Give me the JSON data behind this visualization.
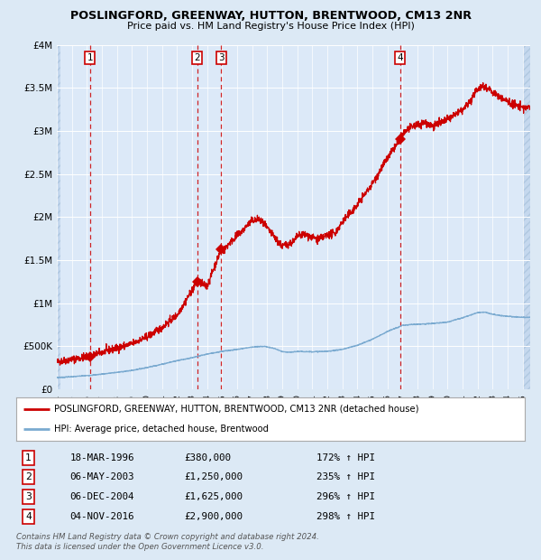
{
  "title": "POSLINGFORD, GREENWAY, HUTTON, BRENTWOOD, CM13 2NR",
  "subtitle": "Price paid vs. HM Land Registry's House Price Index (HPI)",
  "ylim": [
    0,
    4000000
  ],
  "yticks": [
    0,
    500000,
    1000000,
    1500000,
    2000000,
    2500000,
    3000000,
    3500000,
    4000000
  ],
  "ytick_labels": [
    "£0",
    "£500K",
    "£1M",
    "£1.5M",
    "£2M",
    "£2.5M",
    "£3M",
    "£3.5M",
    "£4M"
  ],
  "bg_color": "#dce9f5",
  "plot_bg_color": "#dce9f8",
  "hatch_color": "#c5d8ee",
  "grid_color": "#ffffff",
  "red_line_color": "#cc0000",
  "blue_line_color": "#7aaad0",
  "vline_color": "#cc0000",
  "legend_label_red": "POSLINGFORD, GREENWAY, HUTTON, BRENTWOOD, CM13 2NR (detached house)",
  "legend_label_blue": "HPI: Average price, detached house, Brentwood",
  "sales": [
    {
      "num": 1,
      "x_year": 1996.21,
      "price": 380000
    },
    {
      "num": 2,
      "x_year": 2003.34,
      "price": 1250000
    },
    {
      "num": 3,
      "x_year": 2004.93,
      "price": 1625000
    },
    {
      "num": 4,
      "x_year": 2016.84,
      "price": 2900000
    }
  ],
  "sale_table": [
    {
      "num": 1,
      "date": "18-MAR-1996",
      "price": "£380,000",
      "hpi": "172% ↑ HPI"
    },
    {
      "num": 2,
      "date": "06-MAY-2003",
      "price": "£1,250,000",
      "hpi": "235% ↑ HPI"
    },
    {
      "num": 3,
      "date": "06-DEC-2004",
      "price": "£1,625,000",
      "hpi": "296% ↑ HPI"
    },
    {
      "num": 4,
      "date": "04-NOV-2016",
      "price": "£2,900,000",
      "hpi": "298% ↑ HPI"
    }
  ],
  "footer": "Contains HM Land Registry data © Crown copyright and database right 2024.\nThis data is licensed under the Open Government Licence v3.0.",
  "xmin": 1994.0,
  "xmax": 2025.5
}
